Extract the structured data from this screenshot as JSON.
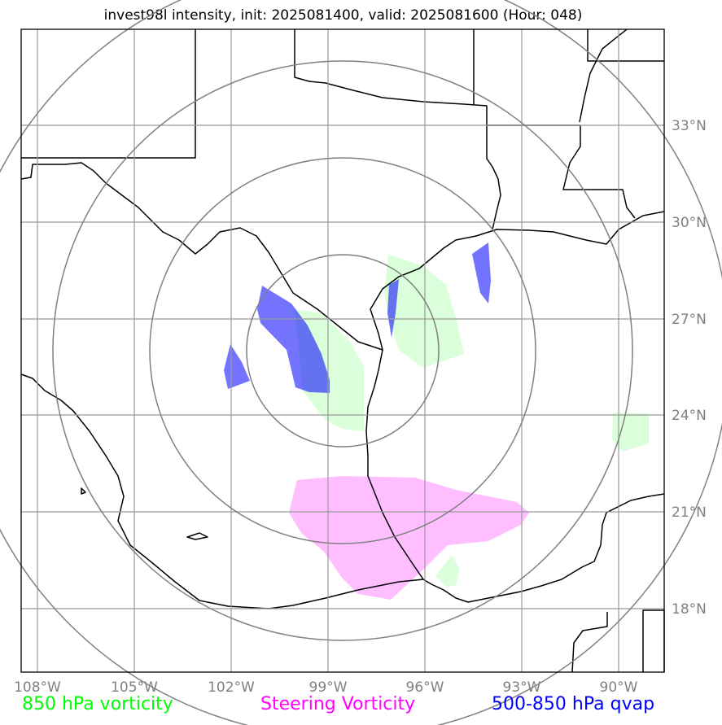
{
  "title": "invest98l intensity, init: 2025081400, valid: 2025081600 (Hour: 048)",
  "map": {
    "lon_range": [
      -108.7,
      -88.0
    ],
    "lat_range": [
      15.9,
      35.9
    ],
    "lon_ticks": [
      "108°W",
      "105°W",
      "102°W",
      "99°W",
      "96°W",
      "93°W",
      "90°W"
    ],
    "lat_ticks": [
      "33°N",
      "30°N",
      "27°N",
      "24°N",
      "21°N",
      "18°N"
    ],
    "range_rings_center": {
      "lon": -99.0,
      "lat": 25.4
    },
    "gridline_color": "#999999",
    "ring_color": "#808080"
  },
  "legend": {
    "vort850": {
      "label": "850 hPa vorticity",
      "color": "#00ff00"
    },
    "steering": {
      "label": "Steering Vorticity",
      "color": "#ff00ff"
    },
    "qvap": {
      "label": "500-850 hPa qvap",
      "color": "#0000ff"
    }
  }
}
